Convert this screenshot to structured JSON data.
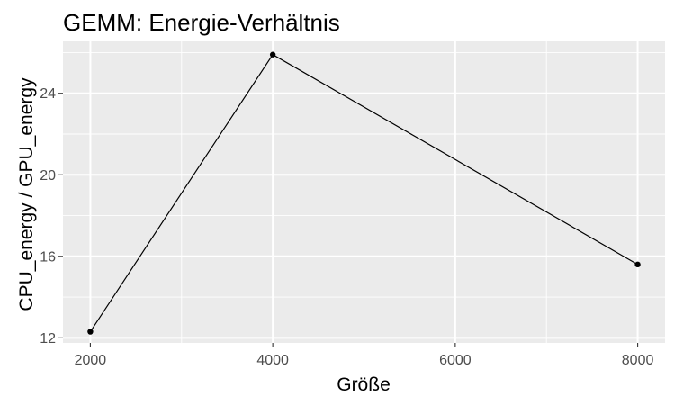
{
  "chart_data": {
    "type": "line",
    "title": "GEMM: Energie-Verhältnis",
    "xlabel": "Größe",
    "ylabel": "CPU_energy / GPU_energy",
    "x": [
      2000,
      4000,
      8000
    ],
    "series": [
      {
        "values": [
          12.3,
          25.9,
          15.6
        ]
      }
    ],
    "xlim": [
      1700,
      8300
    ],
    "ylim": [
      11.75,
      26.55
    ],
    "x_ticks": [
      2000,
      4000,
      6000,
      8000
    ],
    "x_tick_labels": [
      "2000",
      "4000",
      "6000",
      "8000"
    ],
    "x_minor_ticks": [
      3000,
      5000,
      7000
    ],
    "y_ticks": [
      12,
      16,
      20,
      24
    ],
    "y_tick_labels": [
      "12",
      "16",
      "20",
      "24"
    ],
    "y_minor_ticks": [
      14,
      18,
      22,
      26
    ],
    "grid": true,
    "legend": "none",
    "colors": {
      "panel_background": "#ebebeb",
      "grid_major": "#ffffff",
      "line": "#000000",
      "point": "#000000",
      "tick_text": "#4d4d4d"
    }
  }
}
